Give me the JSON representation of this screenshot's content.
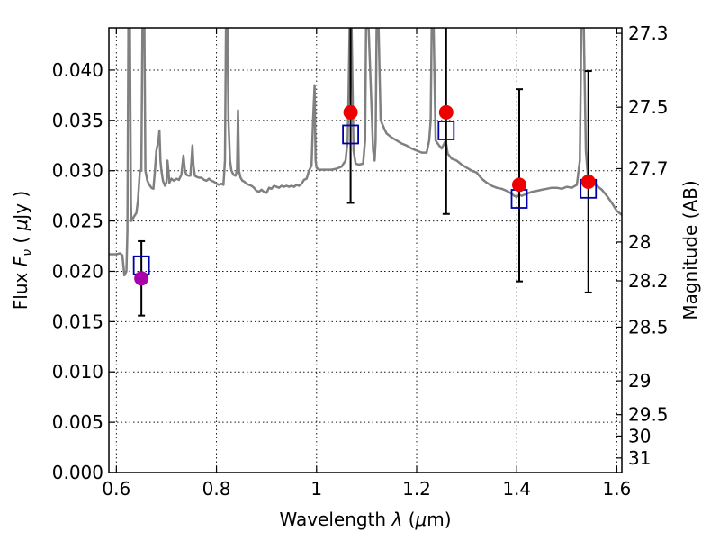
{
  "chart_data": {
    "type": "scatter",
    "title": "",
    "xlabel_prefix": "Wavelength",
    "xlabel_var": "λ",
    "xlabel_unit_open": "(",
    "xlabel_unit_mu": "μ",
    "xlabel_unit_rest": "m)",
    "ylabel_prefix": "Flux",
    "ylabel_var": "F",
    "ylabel_sub": "ν",
    "ylabel_unit_open": "(",
    "ylabel_unit_mu": "μ",
    "ylabel_unit_rest": "Jy )",
    "y2label": "Magnitude (AB)",
    "xlim": [
      0.585,
      1.61
    ],
    "ylim": [
      0.0,
      0.0442
    ],
    "grid": true,
    "x_ticks": [
      {
        "value": 0.6,
        "label": "0.6"
      },
      {
        "value": 0.8,
        "label": "0.8"
      },
      {
        "value": 1.0,
        "label": "1"
      },
      {
        "value": 1.2,
        "label": "1.2"
      },
      {
        "value": 1.4,
        "label": "1.4"
      },
      {
        "value": 1.6,
        "label": "1.6"
      }
    ],
    "y_ticks": [
      {
        "value": 0.0,
        "label": "0.000"
      },
      {
        "value": 0.005,
        "label": "0.005"
      },
      {
        "value": 0.01,
        "label": "0.010"
      },
      {
        "value": 0.015,
        "label": "0.015"
      },
      {
        "value": 0.02,
        "label": "0.020"
      },
      {
        "value": 0.025,
        "label": "0.025"
      },
      {
        "value": 0.03,
        "label": "0.030"
      },
      {
        "value": 0.035,
        "label": "0.035"
      },
      {
        "value": 0.04,
        "label": "0.040"
      }
    ],
    "y2_ticks": [
      {
        "value": 27.3,
        "label": "27.3"
      },
      {
        "value": 27.5,
        "label": "27.5"
      },
      {
        "value": 27.7,
        "label": "27.7"
      },
      {
        "value": 28.0,
        "label": "28"
      },
      {
        "value": 28.2,
        "label": "28.2"
      },
      {
        "value": 28.5,
        "label": "28.5"
      },
      {
        "value": 29.0,
        "label": "29"
      },
      {
        "value": 29.5,
        "label": "29.5"
      },
      {
        "value": 30.0,
        "label": "30"
      },
      {
        "value": 31.0,
        "label": "31"
      }
    ],
    "observed": {
      "color": "#ee0000",
      "points": [
        {
          "x": 1.068,
          "y": 0.0358,
          "yerr_low": 0.0268,
          "yerr_high": 0.0442
        },
        {
          "x": 1.259,
          "y": 0.0358,
          "yerr_low": 0.0257,
          "yerr_high": 0.0442
        },
        {
          "x": 1.405,
          "y": 0.0286,
          "yerr_low": 0.019,
          "yerr_high": 0.0381
        },
        {
          "x": 1.543,
          "y": 0.0289,
          "yerr_low": 0.0179,
          "yerr_high": 0.0399
        }
      ]
    },
    "observed_optical": {
      "color": "#aa00aa",
      "points": [
        {
          "x": 0.65,
          "y": 0.0193,
          "yerr_low": 0.0156,
          "yerr_high": 0.023
        }
      ]
    },
    "model_photometry": {
      "color": "#0000aa",
      "points": [
        {
          "x": 0.65,
          "y": 0.0206
        },
        {
          "x": 1.068,
          "y": 0.0336
        },
        {
          "x": 1.259,
          "y": 0.034
        },
        {
          "x": 1.405,
          "y": 0.0272
        },
        {
          "x": 1.543,
          "y": 0.0282
        }
      ]
    },
    "model_spectrum": {
      "color": "#808080",
      "points": [
        [
          0.585,
          0.0217
        ],
        [
          0.6,
          0.0217
        ],
        [
          0.607,
          0.0218
        ],
        [
          0.612,
          0.0216
        ],
        [
          0.616,
          0.0196
        ],
        [
          0.62,
          0.02
        ],
        [
          0.622,
          0.024
        ],
        [
          0.624,
          0.0442
        ],
        [
          0.627,
          0.0442
        ],
        [
          0.629,
          0.027
        ],
        [
          0.63,
          0.025
        ],
        [
          0.636,
          0.0255
        ],
        [
          0.64,
          0.0258
        ],
        [
          0.643,
          0.027
        ],
        [
          0.647,
          0.03
        ],
        [
          0.65,
          0.03
        ],
        [
          0.652,
          0.0442
        ],
        [
          0.656,
          0.0442
        ],
        [
          0.658,
          0.03
        ],
        [
          0.662,
          0.029
        ],
        [
          0.666,
          0.0286
        ],
        [
          0.67,
          0.0283
        ],
        [
          0.674,
          0.0282
        ],
        [
          0.677,
          0.03
        ],
        [
          0.68,
          0.032
        ],
        [
          0.684,
          0.033
        ],
        [
          0.686,
          0.034
        ],
        [
          0.688,
          0.031
        ],
        [
          0.69,
          0.03
        ],
        [
          0.693,
          0.029
        ],
        [
          0.697,
          0.0285
        ],
        [
          0.7,
          0.0288
        ],
        [
          0.702,
          0.031
        ],
        [
          0.704,
          0.03
        ],
        [
          0.706,
          0.0288
        ],
        [
          0.71,
          0.0292
        ],
        [
          0.715,
          0.029
        ],
        [
          0.72,
          0.0292
        ],
        [
          0.725,
          0.0291
        ],
        [
          0.73,
          0.0296
        ],
        [
          0.734,
          0.0315
        ],
        [
          0.737,
          0.03
        ],
        [
          0.74,
          0.0296
        ],
        [
          0.744,
          0.0295
        ],
        [
          0.748,
          0.0295
        ],
        [
          0.75,
          0.031
        ],
        [
          0.752,
          0.0325
        ],
        [
          0.754,
          0.0305
        ],
        [
          0.757,
          0.0295
        ],
        [
          0.76,
          0.0294
        ],
        [
          0.765,
          0.0293
        ],
        [
          0.77,
          0.0293
        ],
        [
          0.775,
          0.0291
        ],
        [
          0.78,
          0.029
        ],
        [
          0.785,
          0.0292
        ],
        [
          0.79,
          0.029
        ],
        [
          0.795,
          0.0289
        ],
        [
          0.8,
          0.0287
        ],
        [
          0.805,
          0.0286
        ],
        [
          0.81,
          0.0287
        ],
        [
          0.814,
          0.0286
        ],
        [
          0.817,
          0.031
        ],
        [
          0.819,
          0.0442
        ],
        [
          0.822,
          0.0442
        ],
        [
          0.824,
          0.035
        ],
        [
          0.827,
          0.031
        ],
        [
          0.83,
          0.03
        ],
        [
          0.834,
          0.0296
        ],
        [
          0.838,
          0.0295
        ],
        [
          0.841,
          0.03
        ],
        [
          0.843,
          0.036
        ],
        [
          0.845,
          0.03
        ],
        [
          0.848,
          0.0293
        ],
        [
          0.852,
          0.029
        ],
        [
          0.856,
          0.0289
        ],
        [
          0.86,
          0.0287
        ],
        [
          0.865,
          0.0286
        ],
        [
          0.87,
          0.0285
        ],
        [
          0.875,
          0.0283
        ],
        [
          0.88,
          0.028
        ],
        [
          0.885,
          0.0279
        ],
        [
          0.89,
          0.0281
        ],
        [
          0.895,
          0.0279
        ],
        [
          0.9,
          0.0278
        ],
        [
          0.905,
          0.0283
        ],
        [
          0.91,
          0.0282
        ],
        [
          0.915,
          0.0285
        ],
        [
          0.92,
          0.0284
        ],
        [
          0.925,
          0.0283
        ],
        [
          0.93,
          0.0285
        ],
        [
          0.935,
          0.0284
        ],
        [
          0.94,
          0.0285
        ],
        [
          0.945,
          0.0284
        ],
        [
          0.95,
          0.0285
        ],
        [
          0.955,
          0.0284
        ],
        [
          0.96,
          0.0286
        ],
        [
          0.965,
          0.0285
        ],
        [
          0.97,
          0.0287
        ],
        [
          0.975,
          0.0291
        ],
        [
          0.98,
          0.0292
        ],
        [
          0.985,
          0.03
        ],
        [
          0.99,
          0.0305
        ],
        [
          0.993,
          0.035
        ],
        [
          0.996,
          0.0385
        ],
        [
          0.998,
          0.031
        ],
        [
          1.0,
          0.0303
        ],
        [
          1.005,
          0.0301
        ],
        [
          1.01,
          0.0301
        ],
        [
          1.02,
          0.0301
        ],
        [
          1.03,
          0.0301
        ],
        [
          1.04,
          0.0302
        ],
        [
          1.05,
          0.0304
        ],
        [
          1.058,
          0.031
        ],
        [
          1.062,
          0.033
        ],
        [
          1.064,
          0.038
        ],
        [
          1.066,
          0.0442
        ],
        [
          1.07,
          0.0442
        ],
        [
          1.074,
          0.032
        ],
        [
          1.078,
          0.0307
        ],
        [
          1.085,
          0.0306
        ],
        [
          1.093,
          0.0307
        ],
        [
          1.097,
          0.033
        ],
        [
          1.099,
          0.0442
        ],
        [
          1.104,
          0.0442
        ],
        [
          1.11,
          0.036
        ],
        [
          1.113,
          0.032
        ],
        [
          1.116,
          0.031
        ],
        [
          1.118,
          0.033
        ],
        [
          1.12,
          0.0442
        ],
        [
          1.124,
          0.0442
        ],
        [
          1.128,
          0.035
        ],
        [
          1.135,
          0.0342
        ],
        [
          1.14,
          0.0337
        ],
        [
          1.15,
          0.0333
        ],
        [
          1.16,
          0.033
        ],
        [
          1.17,
          0.0327
        ],
        [
          1.18,
          0.0325
        ],
        [
          1.19,
          0.0322
        ],
        [
          1.2,
          0.032
        ],
        [
          1.21,
          0.0318
        ],
        [
          1.22,
          0.0318
        ],
        [
          1.225,
          0.033
        ],
        [
          1.228,
          0.035
        ],
        [
          1.23,
          0.0442
        ],
        [
          1.234,
          0.0442
        ],
        [
          1.238,
          0.033
        ],
        [
          1.245,
          0.0325
        ],
        [
          1.25,
          0.0322
        ],
        [
          1.258,
          0.033
        ],
        [
          1.262,
          0.0317
        ],
        [
          1.27,
          0.0312
        ],
        [
          1.28,
          0.031
        ],
        [
          1.29,
          0.0306
        ],
        [
          1.3,
          0.0303
        ],
        [
          1.31,
          0.03
        ],
        [
          1.32,
          0.0298
        ],
        [
          1.33,
          0.0292
        ],
        [
          1.34,
          0.0288
        ],
        [
          1.35,
          0.0285
        ],
        [
          1.36,
          0.0283
        ],
        [
          1.37,
          0.0282
        ],
        [
          1.38,
          0.028
        ],
        [
          1.39,
          0.0277
        ],
        [
          1.395,
          0.0275
        ],
        [
          1.4,
          0.0274
        ],
        [
          1.405,
          0.0276
        ],
        [
          1.41,
          0.0275
        ],
        [
          1.42,
          0.0277
        ],
        [
          1.43,
          0.0279
        ],
        [
          1.44,
          0.028
        ],
        [
          1.45,
          0.0281
        ],
        [
          1.46,
          0.0282
        ],
        [
          1.47,
          0.0283
        ],
        [
          1.48,
          0.0283
        ],
        [
          1.49,
          0.0282
        ],
        [
          1.5,
          0.0284
        ],
        [
          1.51,
          0.0283
        ],
        [
          1.52,
          0.0286
        ],
        [
          1.526,
          0.031
        ],
        [
          1.529,
          0.0442
        ],
        [
          1.534,
          0.0442
        ],
        [
          1.538,
          0.032
        ],
        [
          1.542,
          0.0295
        ],
        [
          1.55,
          0.0288
        ],
        [
          1.56,
          0.0285
        ],
        [
          1.57,
          0.0281
        ],
        [
          1.58,
          0.0275
        ],
        [
          1.59,
          0.0268
        ],
        [
          1.6,
          0.026
        ],
        [
          1.61,
          0.0256
        ]
      ]
    }
  }
}
